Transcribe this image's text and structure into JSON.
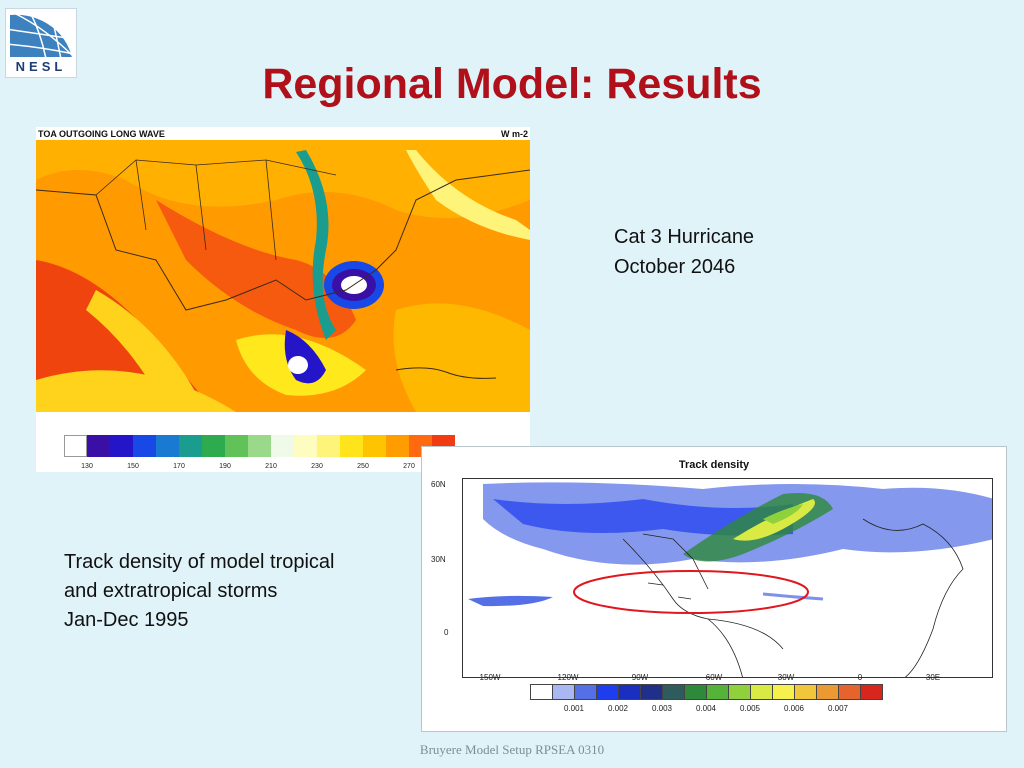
{
  "logo": {
    "text": "NESL"
  },
  "title": "Regional Model: Results",
  "olr_map": {
    "header_left": "TOA OUTGOING LONG WAVE",
    "header_right": "W m-2",
    "colorbar": {
      "colors": [
        "#ffffff",
        "#3a0fa6",
        "#2415c9",
        "#1848e6",
        "#1a7ad1",
        "#1a9c8e",
        "#2dab4e",
        "#62c25a",
        "#9ad98a",
        "#f0fae8",
        "#fffcc0",
        "#fff47a",
        "#ffe41c",
        "#ffc400",
        "#ff9d00",
        "#ff6a10",
        "#f23a13"
      ],
      "ticks": [
        "130",
        "150",
        "170",
        "190",
        "210",
        "230",
        "250",
        "270",
        "290"
      ]
    }
  },
  "caption_hurricane": [
    "Cat 3 Hurricane",
    "October 2046"
  ],
  "caption_track": [
    "Track density of model tropical",
    "and extratropical storms",
    "Jan-Dec 1995"
  ],
  "track_map": {
    "title": "Track density",
    "y_ticks": [
      "60N",
      "30N",
      "0"
    ],
    "x_ticks": [
      "150W",
      "120W",
      "90W",
      "60W",
      "30W",
      "0",
      "30E"
    ],
    "colorbar": {
      "colors": [
        "#ffffff",
        "#a9b7f2",
        "#5570e6",
        "#1f3df0",
        "#1a2fbf",
        "#1f2f8a",
        "#2e5c5c",
        "#2e8a3a",
        "#56b33a",
        "#8fd13d",
        "#d9ea45",
        "#f5f24d",
        "#f2c63a",
        "#eb9a33",
        "#e5642d",
        "#d8251e"
      ],
      "ticks": [
        "0.001",
        "0.002",
        "0.003",
        "0.004",
        "0.005",
        "0.006",
        "0.007"
      ]
    },
    "highlight_color": "#e0171e"
  },
  "footer": "Bruyere Model Setup RPSEA 0310"
}
